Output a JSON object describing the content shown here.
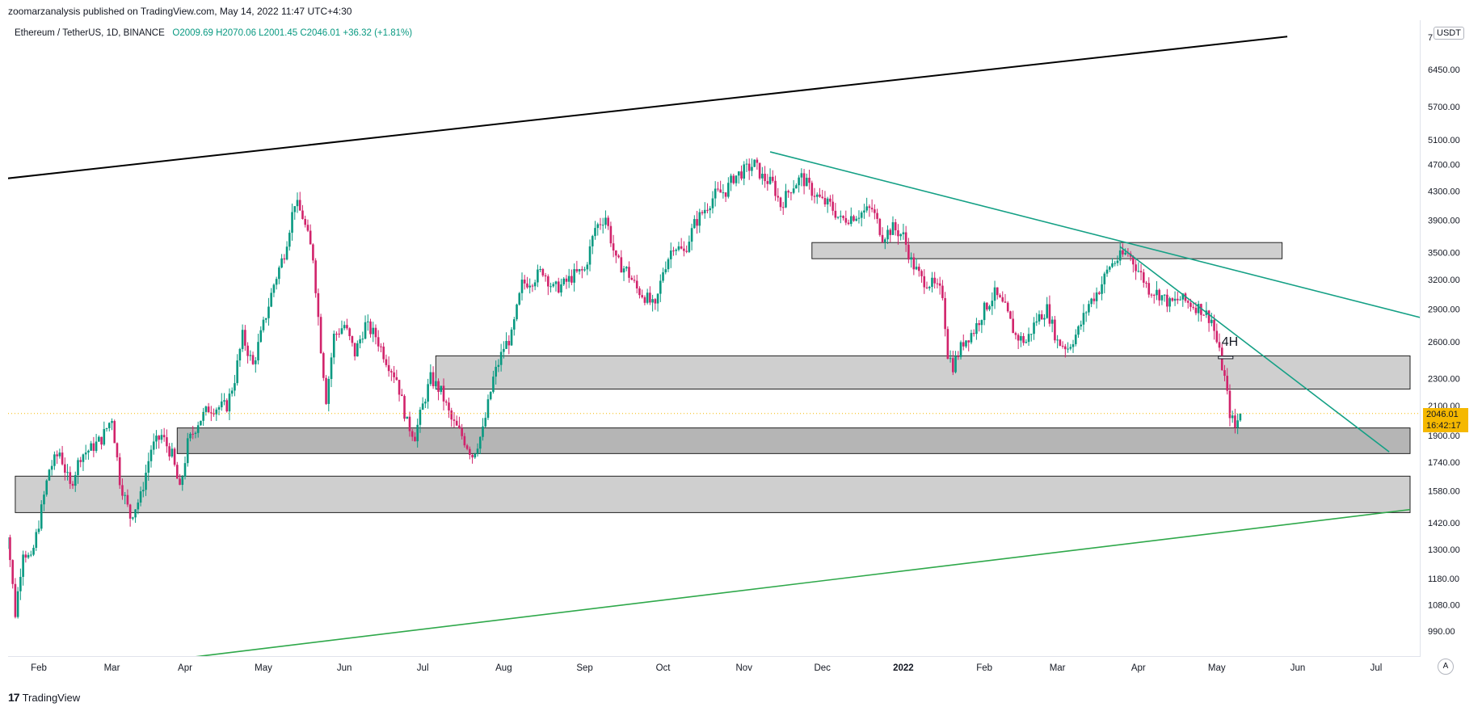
{
  "header": {
    "publish_text": "zoomarzanalysis published on TradingView.com, May 14, 2022 11:47 UTC+4:30"
  },
  "legend": {
    "symbol": "Ethereum / TetherUS, 1D, BINANCE",
    "ohlc": "O2009.69  H2070.06  L2001.45  C2046.01  +36.32 (+1.81%)"
  },
  "footer": {
    "brand": "TradingView",
    "logo_glyph": "17"
  },
  "price_axis": {
    "currency": "USDT",
    "auto_label": "A",
    "top_partial_label": "7"
  },
  "current_price": {
    "value": "2046.01",
    "countdown": "16:42:17"
  },
  "annotation": {
    "text": "4H"
  },
  "colors": {
    "up": "#089981",
    "down": "#d1236b",
    "zone_fill": "#cfcfcf",
    "zone_dark": "#b5b5b5",
    "trend_teal": "#14a085",
    "support_green": "#2ea84a",
    "black_line": "#000000",
    "price_tag": "#f5b800"
  },
  "chart_data": {
    "type": "candlestick",
    "symbol": "ETHUSDT",
    "timeframe": "1D",
    "scale": "logarithmic",
    "y_ticks": [
      6450,
      5700,
      5100,
      4700,
      4300,
      3900,
      3500,
      3200,
      2900,
      2600,
      2300,
      2100,
      1900,
      1740,
      1580,
      1420,
      1300,
      1180,
      1080,
      990
    ],
    "y_tick_labels": [
      "6450.00",
      "5700.00",
      "5100.00",
      "4700.00",
      "4300.00",
      "3900.00",
      "3500.00",
      "3200.00",
      "2900.00",
      "2600.00",
      "2300.00",
      "2100.00",
      "1900.00",
      "1740.00",
      "1580.00",
      "1420.00",
      "1300.00",
      "1180.00",
      "1080.00",
      "990.00"
    ],
    "x_labels": [
      "Feb",
      "Mar",
      "Apr",
      "May",
      "Jun",
      "Jul",
      "Aug",
      "Sep",
      "Oct",
      "Nov",
      "Dec",
      "2022",
      "Feb",
      "Mar",
      "Apr",
      "May",
      "Jun",
      "Jul"
    ],
    "x_label_days": [
      0,
      28,
      56,
      86,
      117,
      147,
      178,
      209,
      239,
      270,
      300,
      331,
      362,
      390,
      421,
      451,
      482,
      512
    ],
    "price_path": [
      [
        -15,
        1200
      ],
      [
        -12,
        1380
      ],
      [
        -9,
        1050
      ],
      [
        -6,
        1300
      ],
      [
        -3,
        1250
      ],
      [
        0,
        1420
      ],
      [
        4,
        1700
      ],
      [
        8,
        1800
      ],
      [
        12,
        1600
      ],
      [
        16,
        1780
      ],
      [
        20,
        1820
      ],
      [
        24,
        1880
      ],
      [
        28,
        2020
      ],
      [
        31,
        1640
      ],
      [
        35,
        1450
      ],
      [
        39,
        1550
      ],
      [
        43,
        1820
      ],
      [
        47,
        1900
      ],
      [
        51,
        1780
      ],
      [
        54,
        1580
      ],
      [
        57,
        1850
      ],
      [
        61,
        1990
      ],
      [
        65,
        2080
      ],
      [
        69,
        2090
      ],
      [
        72,
        2100
      ],
      [
        75,
        2300
      ],
      [
        78,
        2650
      ],
      [
        82,
        2400
      ],
      [
        86,
        2750
      ],
      [
        90,
        3150
      ],
      [
        94,
        3500
      ],
      [
        98,
        4150
      ],
      [
        101,
        3950
      ],
      [
        105,
        3450
      ],
      [
        108,
        2550
      ],
      [
        110,
        2150
      ],
      [
        113,
        2650
      ],
      [
        117,
        2750
      ],
      [
        121,
        2500
      ],
      [
        125,
        2750
      ],
      [
        129,
        2650
      ],
      [
        133,
        2450
      ],
      [
        137,
        2300
      ],
      [
        141,
        1980
      ],
      [
        144,
        1900
      ],
      [
        147,
        2100
      ],
      [
        150,
        2300
      ],
      [
        154,
        2200
      ],
      [
        158,
        2000
      ],
      [
        162,
        1900
      ],
      [
        166,
        1780
      ],
      [
        170,
        1930
      ],
      [
        174,
        2300
      ],
      [
        178,
        2550
      ],
      [
        181,
        2650
      ],
      [
        185,
        3150
      ],
      [
        189,
        3200
      ],
      [
        193,
        3300
      ],
      [
        197,
        3100
      ],
      [
        201,
        3150
      ],
      [
        205,
        3250
      ],
      [
        209,
        3300
      ],
      [
        213,
        3800
      ],
      [
        217,
        3950
      ],
      [
        221,
        3400
      ],
      [
        225,
        3300
      ],
      [
        229,
        3100
      ],
      [
        233,
        3000
      ],
      [
        236,
        2900
      ],
      [
        239,
        3300
      ],
      [
        243,
        3600
      ],
      [
        247,
        3500
      ],
      [
        251,
        3850
      ],
      [
        255,
        4050
      ],
      [
        259,
        4250
      ],
      [
        263,
        4300
      ],
      [
        266,
        4500
      ],
      [
        270,
        4600
      ],
      [
        274,
        4700
      ],
      [
        277,
        4500
      ],
      [
        281,
        4400
      ],
      [
        284,
        4100
      ],
      [
        288,
        4350
      ],
      [
        292,
        4500
      ],
      [
        296,
        4300
      ],
      [
        300,
        4150
      ],
      [
        303,
        4100
      ],
      [
        307,
        3900
      ],
      [
        311,
        3950
      ],
      [
        315,
        4000
      ],
      [
        319,
        4050
      ],
      [
        323,
        3700
      ],
      [
        327,
        3800
      ],
      [
        331,
        3700
      ],
      [
        334,
        3400
      ],
      [
        338,
        3200
      ],
      [
        342,
        3150
      ],
      [
        346,
        3050
      ],
      [
        348,
        2500
      ],
      [
        350,
        2400
      ],
      [
        354,
        2600
      ],
      [
        358,
        2700
      ],
      [
        362,
        2900
      ],
      [
        366,
        3050
      ],
      [
        370,
        2900
      ],
      [
        374,
        2650
      ],
      [
        378,
        2600
      ],
      [
        382,
        2800
      ],
      [
        386,
        2900
      ],
      [
        390,
        2600
      ],
      [
        394,
        2550
      ],
      [
        398,
        2700
      ],
      [
        402,
        2950
      ],
      [
        406,
        3100
      ],
      [
        410,
        3350
      ],
      [
        414,
        3450
      ],
      [
        417,
        3500
      ],
      [
        421,
        3300
      ],
      [
        425,
        3100
      ],
      [
        429,
        3050
      ],
      [
        433,
        2950
      ],
      [
        437,
        3000
      ],
      [
        441,
        2950
      ],
      [
        445,
        2900
      ],
      [
        449,
        2800
      ],
      [
        452,
        2500
      ],
      [
        454,
        2300
      ],
      [
        456,
        2050
      ],
      [
        458,
        1950
      ],
      [
        460,
        2046
      ]
    ],
    "horizontal_zones": [
      {
        "from_day": 296,
        "to_day": 476,
        "price_low": 3430,
        "price_high": 3620,
        "shade": "light"
      },
      {
        "from_day": 152,
        "to_day": 525,
        "price_low": 2220,
        "price_high": 2480,
        "shade": "light"
      },
      {
        "from_day": 53,
        "to_day": 525,
        "price_low": 1790,
        "price_high": 1950,
        "shade": "dark"
      },
      {
        "from_day": -9,
        "to_day": 525,
        "price_low": 1470,
        "price_high": 1660,
        "shade": "light"
      }
    ],
    "trendlines": [
      {
        "name": "upper-channel",
        "color": "black",
        "points": [
          [
            -20,
            4450
          ],
          [
            478,
            7200
          ]
        ]
      },
      {
        "name": "descending-main",
        "color": "teal",
        "points": [
          [
            280,
            4900
          ],
          [
            545,
            2720
          ]
        ]
      },
      {
        "name": "descending-steep",
        "color": "teal",
        "points": [
          [
            414,
            3570
          ],
          [
            517,
            1800
          ]
        ]
      },
      {
        "name": "lower-support",
        "color": "green",
        "points": [
          [
            51,
            900
          ],
          [
            525,
            1485
          ]
        ]
      }
    ],
    "current_price_line": 2046.01,
    "annotation_day": 451,
    "annotation_price": 2600
  }
}
